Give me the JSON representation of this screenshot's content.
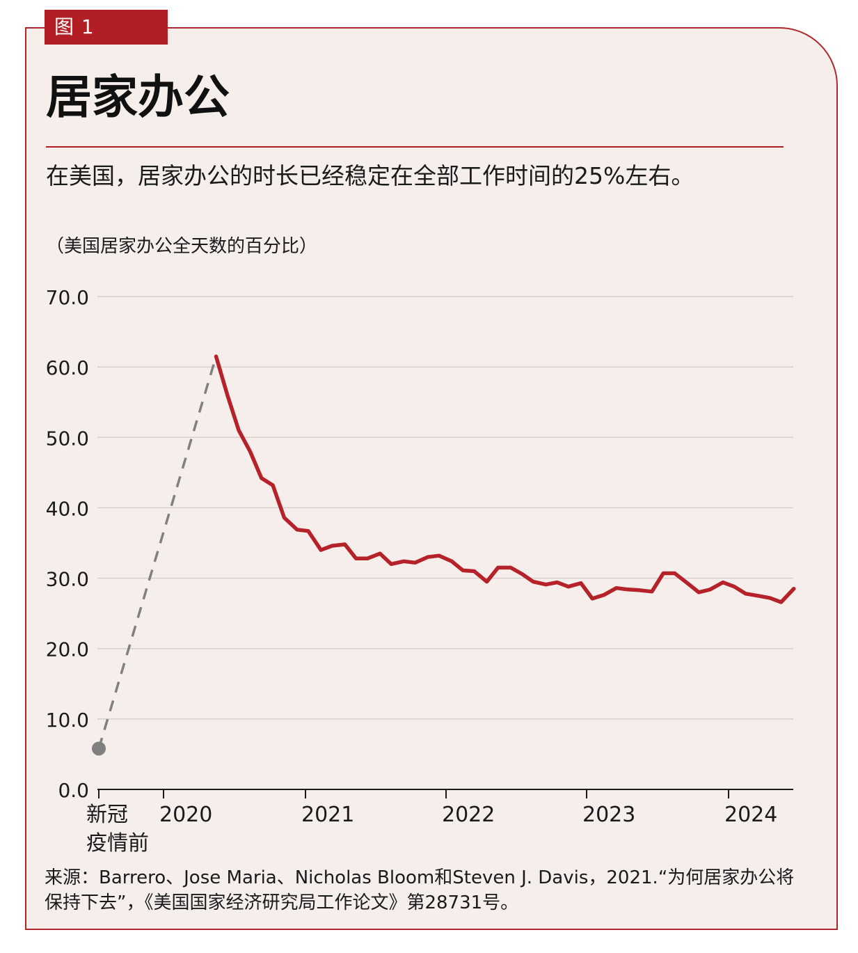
{
  "figure_tag": "图 1",
  "title": "居家办公",
  "subtitle": "在美国，居家办公的时长已经稳定在全部工作时间的25%左右。",
  "source": "来源：Barrero、Jose Maria、Nicholas Bloom和Steven J. Davis，2021.“为何居家办公将保持下去”，《美国国家经济研究局工作论文》第28731号。",
  "colors": {
    "accent": "#b11f24",
    "line": "#b5222a",
    "pre": "#808080",
    "panel": "#f6eeeb"
  },
  "chart_data": {
    "type": "line",
    "ylabel": "（美国居家办公全天数的百分比）",
    "ylim": [
      0,
      70
    ],
    "yticks": [
      "0.0",
      "10.0",
      "20.0",
      "30.0",
      "40.0",
      "50.0",
      "60.0",
      "70.0"
    ],
    "xticks": [
      {
        "label": "新冠疫情前",
        "x": 2019.0
      },
      {
        "label": "2020",
        "x": 2020.0
      },
      {
        "label": "2021",
        "x": 2021.0
      },
      {
        "label": "2022",
        "x": 2022.0
      },
      {
        "label": "2023",
        "x": 2023.0
      },
      {
        "label": "2024",
        "x": 2024.0
      }
    ],
    "grid": true,
    "series": [
      {
        "style": "dashed-gray",
        "points": [
          [
            2019.0,
            5.8
          ],
          [
            2020.37,
            61.5
          ]
        ]
      },
      {
        "style": "solid-red",
        "points": [
          [
            2020.37,
            61.5
          ],
          [
            2020.45,
            56.0
          ],
          [
            2020.53,
            51.0
          ],
          [
            2020.61,
            48.0
          ],
          [
            2020.69,
            44.2
          ],
          [
            2020.77,
            43.2
          ],
          [
            2020.85,
            38.6
          ],
          [
            2020.94,
            36.9
          ],
          [
            2021.02,
            36.7
          ],
          [
            2021.11,
            34.0
          ],
          [
            2021.19,
            34.6
          ],
          [
            2021.28,
            34.8
          ],
          [
            2021.36,
            32.8
          ],
          [
            2021.44,
            32.8
          ],
          [
            2021.53,
            33.5
          ],
          [
            2021.61,
            32.0
          ],
          [
            2021.7,
            32.4
          ],
          [
            2021.78,
            32.2
          ],
          [
            2021.87,
            33.0
          ],
          [
            2021.95,
            33.2
          ],
          [
            2022.04,
            32.4
          ],
          [
            2022.12,
            31.1
          ],
          [
            2022.2,
            31.0
          ],
          [
            2022.29,
            29.5
          ],
          [
            2022.37,
            31.5
          ],
          [
            2022.46,
            31.5
          ],
          [
            2022.54,
            30.6
          ],
          [
            2022.62,
            29.5
          ],
          [
            2022.71,
            29.1
          ],
          [
            2022.79,
            29.4
          ],
          [
            2022.87,
            28.8
          ],
          [
            2022.96,
            29.3
          ],
          [
            2023.04,
            27.1
          ],
          [
            2023.12,
            27.6
          ],
          [
            2023.21,
            28.6
          ],
          [
            2023.29,
            28.4
          ],
          [
            2023.37,
            28.3
          ],
          [
            2023.46,
            28.1
          ],
          [
            2023.54,
            30.7
          ],
          [
            2023.62,
            30.7
          ],
          [
            2023.71,
            29.3
          ],
          [
            2023.79,
            28.0
          ],
          [
            2023.87,
            28.4
          ],
          [
            2023.96,
            29.4
          ],
          [
            2024.04,
            28.8
          ],
          [
            2024.12,
            27.8
          ],
          [
            2024.21,
            27.5
          ],
          [
            2024.29,
            27.2
          ],
          [
            2024.37,
            26.6
          ],
          [
            2024.46,
            28.5
          ]
        ]
      }
    ]
  }
}
